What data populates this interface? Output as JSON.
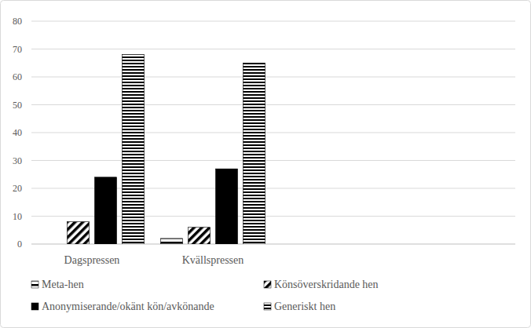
{
  "chart_data": {
    "type": "bar",
    "categories": [
      "Dagspressen",
      "Kvällspressen",
      null,
      null
    ],
    "series": [
      {
        "name": "Meta-hen",
        "color": "#000000",
        "values": [
          0,
          2,
          null,
          null
        ]
      },
      {
        "name": "Könsöverskridande hen",
        "color": "#000000",
        "values": [
          8,
          6,
          null,
          null
        ]
      },
      {
        "name": "Anonymiserande/okänt kön/avkönande",
        "color": "#000000",
        "values": [
          24,
          27,
          null,
          null
        ]
      },
      {
        "name": "Generiskt hen",
        "color": "#000000",
        "values": [
          68,
          65,
          null,
          null
        ]
      }
    ],
    "ylim": [
      0,
      80
    ],
    "yticks": [
      0,
      10,
      20,
      30,
      40,
      50,
      60,
      70,
      80
    ],
    "grid": true,
    "legend": "bottom"
  }
}
